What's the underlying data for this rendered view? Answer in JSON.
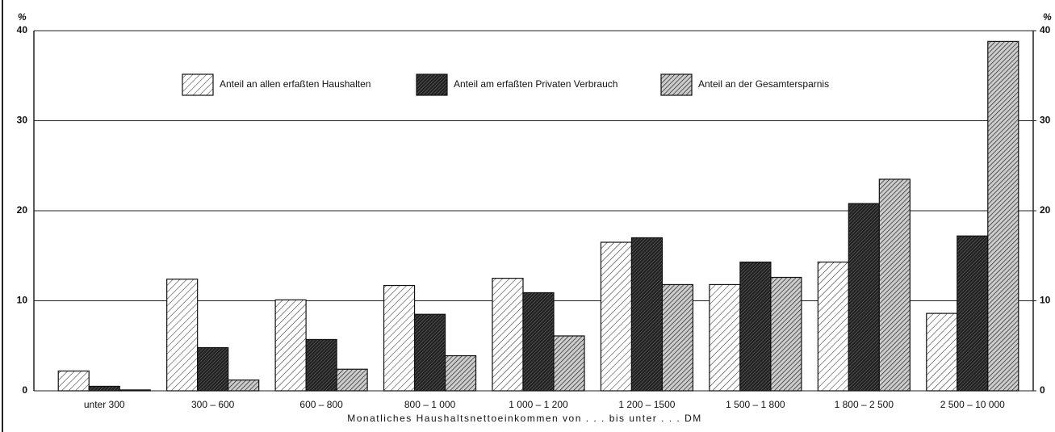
{
  "chart_data": {
    "type": "bar",
    "y_unit": "%",
    "xlabel": "Monatliches Haushaltsnettoeinkommen von . . . bis unter . . . DM",
    "categories": [
      "unter 300",
      "300 – 600",
      "600 – 800",
      "800 – 1 000",
      "1 000 – 1 200",
      "1 200 – 1500",
      "1 500 – 1 800",
      "1 800 – 2 500",
      "2 500 – 10 000"
    ],
    "series": [
      {
        "name": "Anteil an allen erfaßten Haushalten",
        "color": "#ffffff",
        "values": [
          2.2,
          12.4,
          10.1,
          11.7,
          12.5,
          16.5,
          11.8,
          14.3,
          8.6
        ]
      },
      {
        "name": "Anteil am erfaßten Privaten Verbrauch",
        "color": "#2a2a2a",
        "values": [
          0.5,
          4.8,
          5.7,
          8.5,
          10.9,
          17.0,
          14.3,
          20.8,
          17.2
        ]
      },
      {
        "name": "Anteil an der Gesamtersparnis",
        "color": "#9a9a9a",
        "values": [
          0.1,
          1.2,
          2.4,
          3.9,
          6.1,
          11.8,
          12.6,
          23.5,
          38.8
        ]
      }
    ],
    "ylim": [
      0,
      40
    ],
    "yticks": [
      0,
      10,
      20,
      30,
      40
    ],
    "y2lim": [
      0,
      40
    ],
    "y2ticks": [
      0,
      10,
      20,
      30,
      40
    ],
    "grid": true
  }
}
